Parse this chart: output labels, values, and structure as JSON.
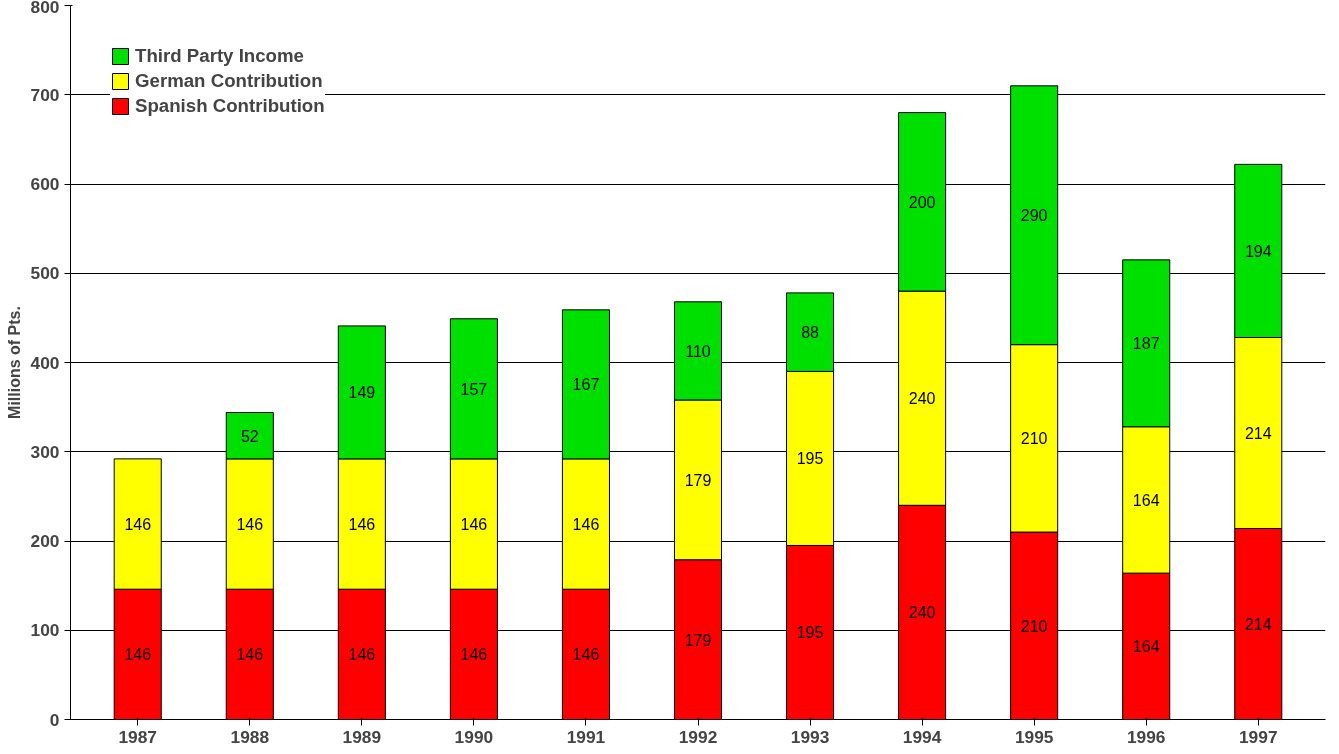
{
  "chart_data": {
    "type": "bar",
    "stacked": true,
    "ylabel": "Millions of Pts.",
    "categories": [
      "1987",
      "1988",
      "1989",
      "1990",
      "1991",
      "1992",
      "1993",
      "1994",
      "1995",
      "1996",
      "1997"
    ],
    "series": [
      {
        "name": "Spanish Contribution",
        "color": "#ff0000",
        "values": [
          146,
          146,
          146,
          146,
          146,
          179,
          195,
          240,
          210,
          164,
          214
        ]
      },
      {
        "name": "German Contribution",
        "color": "#ffff00",
        "values": [
          146,
          146,
          146,
          146,
          146,
          179,
          195,
          240,
          210,
          164,
          214
        ]
      },
      {
        "name": "Third Party Income",
        "color": "#00e000",
        "values": [
          null,
          52,
          149,
          157,
          167,
          110,
          88,
          200,
          290,
          187,
          194
        ]
      }
    ],
    "ylim": [
      0,
      800
    ],
    "yticks": [
      0,
      100,
      200,
      300,
      400,
      500,
      600,
      700,
      800
    ],
    "grid": "y",
    "legend": "top left",
    "data_labels": true
  }
}
